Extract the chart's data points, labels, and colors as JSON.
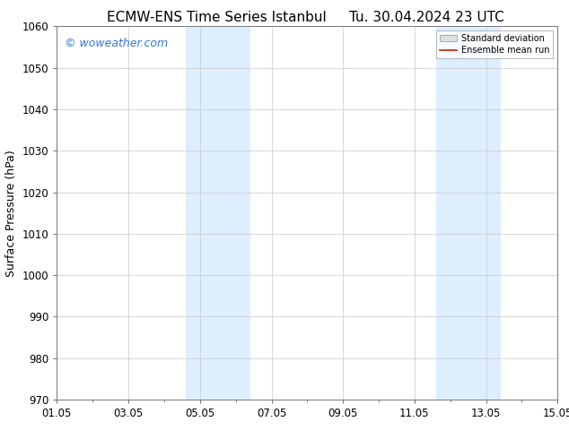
{
  "title_left": "ECMW-ENS Time Series Istanbul",
  "title_right": "Tu. 30.04.2024 23 UTC",
  "ylabel": "Surface Pressure (hPa)",
  "ylim": [
    970,
    1060
  ],
  "yticks": [
    970,
    980,
    990,
    1000,
    1010,
    1020,
    1030,
    1040,
    1050,
    1060
  ],
  "xlim_start": 0.0,
  "xlim_end": 14.0,
  "xtick_labels": [
    "01.05",
    "03.05",
    "05.05",
    "07.05",
    "09.05",
    "11.05",
    "13.05",
    "15.05"
  ],
  "xtick_positions": [
    0,
    2,
    4,
    6,
    8,
    10,
    12,
    14
  ],
  "shaded_regions": [
    {
      "x_start": 3.6,
      "x_end": 5.4
    },
    {
      "x_start": 10.6,
      "x_end": 12.4
    }
  ],
  "shaded_color": "#ddeeff",
  "watermark_text": "© woweather.com",
  "watermark_color": "#3377cc",
  "background_color": "#ffffff",
  "grid_color": "#c8c8c8",
  "legend_std_color": "#c0c0c0",
  "legend_mean_color": "#cc2200",
  "title_fontsize": 11,
  "axis_fontsize": 9,
  "tick_fontsize": 8.5,
  "watermark_fontsize": 9
}
